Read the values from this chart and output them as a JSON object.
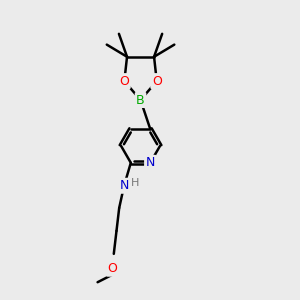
{
  "bg_color": "#ebebeb",
  "atom_colors": {
    "B": "#00aa00",
    "O": "#ff0000",
    "N": "#0000cc",
    "C": "#000000",
    "H": "#777777"
  },
  "bond_color": "#000000",
  "bond_width": 1.8,
  "figsize": [
    3.0,
    3.0
  ],
  "dpi": 100,
  "xlim": [
    3.5,
    7.5
  ],
  "ylim": [
    0.5,
    11.5
  ]
}
